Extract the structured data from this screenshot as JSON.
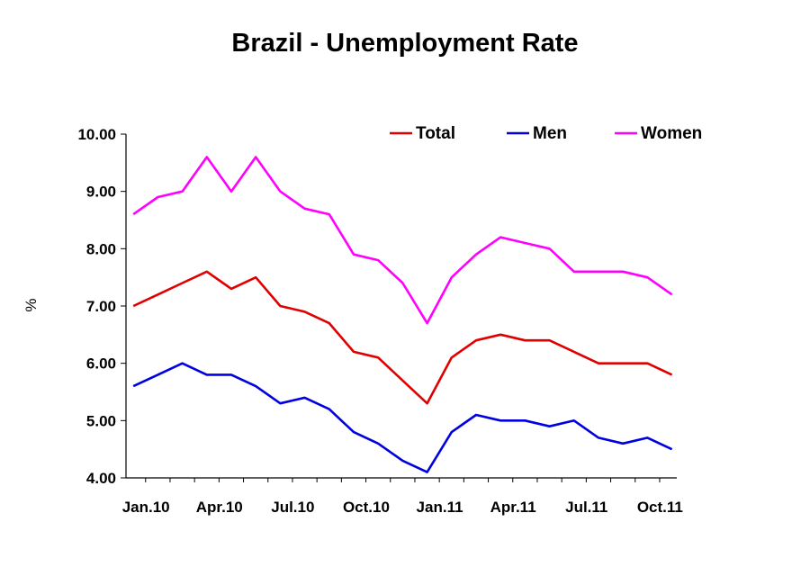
{
  "chart_data": {
    "type": "line",
    "title": "Brazil - Unemployment Rate",
    "xlabel": "",
    "ylabel": "%",
    "ylim": [
      4.0,
      10.0
    ],
    "yticks": [
      "4.00",
      "5.00",
      "6.00",
      "7.00",
      "8.00",
      "9.00",
      "10.00"
    ],
    "ytick_values": [
      4,
      5,
      6,
      7,
      8,
      9,
      10
    ],
    "x": [
      "Jan.10",
      "Feb.10",
      "Mar.10",
      "Apr.10",
      "May.10",
      "Jun.10",
      "Jul.10",
      "Aug.10",
      "Sep.10",
      "Oct.10",
      "Nov.10",
      "Dec.10",
      "Jan.11",
      "Feb.11",
      "Mar.11",
      "Apr.11",
      "May.11",
      "Jun.11",
      "Jul.11",
      "Aug.11",
      "Sep.11",
      "Oct.11",
      "Nov.11"
    ],
    "xtick_labels": [
      "Jan.10",
      "Apr.10",
      "Jul.10",
      "Oct.10",
      "Jan.11",
      "Apr.11",
      "Jul.11",
      "Oct.11"
    ],
    "xtick_index": [
      0,
      3,
      6,
      9,
      12,
      15,
      18,
      21
    ],
    "grid": false,
    "legend_position": "top-right",
    "series": [
      {
        "name": "Total",
        "color": "#e00000",
        "values": [
          7.0,
          7.2,
          7.4,
          7.6,
          7.3,
          7.5,
          7.0,
          6.9,
          6.7,
          6.2,
          6.1,
          5.7,
          5.3,
          6.1,
          6.4,
          6.5,
          6.4,
          6.4,
          6.2,
          6.0,
          6.0,
          6.0,
          5.8
        ]
      },
      {
        "name": "Men",
        "color": "#0000e0",
        "values": [
          5.6,
          5.8,
          6.0,
          5.8,
          5.8,
          5.6,
          5.3,
          5.4,
          5.2,
          4.8,
          4.6,
          4.3,
          4.1,
          4.8,
          5.1,
          5.0,
          5.0,
          4.9,
          5.0,
          4.7,
          4.6,
          4.7,
          4.5
        ]
      },
      {
        "name": "Women",
        "color": "#ff00ff",
        "values": [
          8.6,
          8.9,
          9.0,
          9.6,
          9.0,
          9.6,
          9.0,
          8.7,
          8.6,
          7.9,
          7.8,
          7.4,
          6.7,
          7.5,
          7.9,
          8.2,
          8.1,
          8.0,
          7.6,
          7.6,
          7.6,
          7.5,
          7.2
        ]
      }
    ]
  }
}
